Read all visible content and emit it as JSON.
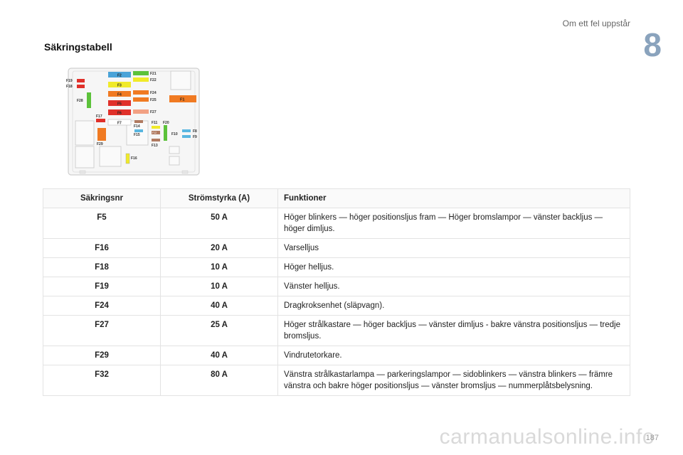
{
  "header": {
    "chapter_label": "Om ett fel uppstår",
    "chapter_number": "8"
  },
  "section_title": "Säkringstabell",
  "diagram": {
    "fuse_labels": {
      "F2": "F2",
      "F3": "F3",
      "F4": "F4",
      "F5": "F5",
      "F6": "F6",
      "F7": "F7",
      "F21": "F21",
      "F22": "F22",
      "F24": "F24",
      "F25": "F25",
      "F27": "F27",
      "F1": "F1",
      "F19": "F19",
      "F18": "F18",
      "F28": "F28",
      "F17": "F17",
      "F14": "F14",
      "F11": "F11",
      "F20": "F20",
      "F15": "F15",
      "F10": "F10",
      "F8": "F8",
      "F9": "F9",
      "F13": "F13",
      "F29": "F29",
      "F16": "F16",
      "F12": "F12"
    },
    "colors": {
      "blue": "#4aa3d8",
      "yellow": "#f0ea2a",
      "orange": "#f07a22",
      "red": "#e0302a",
      "green": "#5cc23a",
      "brown": "#b07a60",
      "salmon": "#f2a184",
      "lightblue": "#59b6e0"
    }
  },
  "table": {
    "headers": [
      "Säkringsnr",
      "Strömstyrka (A)",
      "Funktioner"
    ],
    "rows": [
      {
        "fuse": "F5",
        "amp": "50 A",
        "func": "Höger blinkers — höger positionsljus fram — Höger bromslampor — vänster backljus — höger dimljus."
      },
      {
        "fuse": "F16",
        "amp": "20 A",
        "func": "Varselljus"
      },
      {
        "fuse": "F18",
        "amp": "10 A",
        "func": "Höger helljus."
      },
      {
        "fuse": "F19",
        "amp": "10 A",
        "func": "Vänster helljus."
      },
      {
        "fuse": "F24",
        "amp": "40 A",
        "func": "Dragkroksenhet (släpvagn)."
      },
      {
        "fuse": "F27",
        "amp": "25 A",
        "func": "Höger strålkastare — höger backljus — vänster dimljus - bakre vänstra positionsljus — tredje bromsljus."
      },
      {
        "fuse": "F29",
        "amp": "40 A",
        "func": "Vindrutetorkare."
      },
      {
        "fuse": "F32",
        "amp": "80 A",
        "func": "Vänstra strålkastarlampa — parkeringslampor — sidoblinkers — vänstra blinkers — främre vänstra och bakre höger positionsljus — vänster bromsljus — nummerplåtsbelysning."
      }
    ]
  },
  "footer": {
    "page_number": "187",
    "watermark": "carmanualsonline.info"
  }
}
